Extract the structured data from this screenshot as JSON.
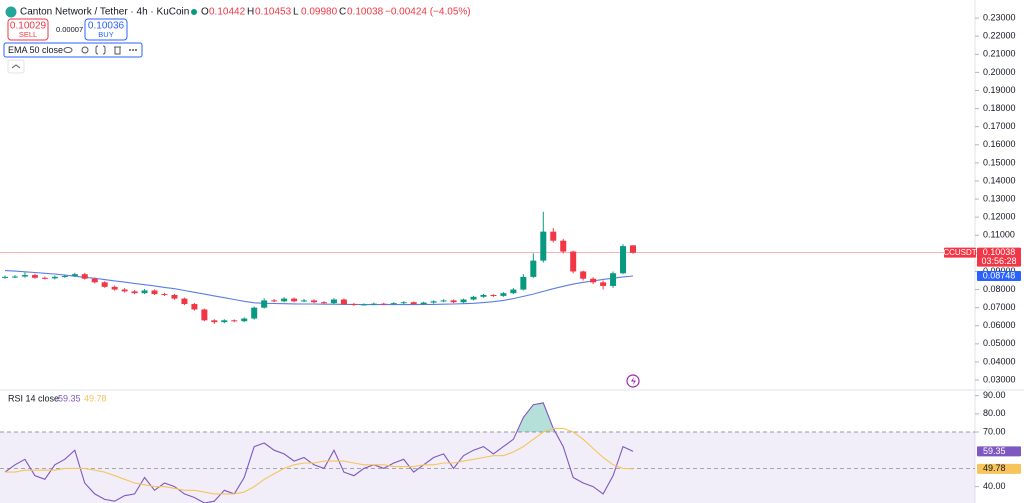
{
  "chart_data": [
    {
      "type": "candlestick",
      "title": "Canton Network / Tether · 4h · KuCoin",
      "ohlc_labels": [
        "O",
        "H",
        "L",
        "C"
      ],
      "ohlc_values": [
        "0.10442",
        "0.10453",
        "0.09980",
        "0.10038"
      ],
      "change": "−0.00424 (−4.05%)",
      "sell": {
        "price": "0.10029",
        "label": "SELL"
      },
      "spread": "0.00007",
      "buy": {
        "price": "0.10036",
        "label": "BUY"
      },
      "symbol": "CCUSDT",
      "last_price_label": "0.10038",
      "countdown": "03:56:28",
      "up_color": "#089981",
      "down_color": "#f23645",
      "open": [
        0.0865,
        0.087,
        0.0872,
        0.088,
        0.0865,
        0.0862,
        0.087,
        0.0875,
        0.0885,
        0.086,
        0.084,
        0.0815,
        0.08,
        0.079,
        0.078,
        0.0795,
        0.0775,
        0.077,
        0.075,
        0.072,
        0.069,
        0.063,
        0.062,
        0.063,
        0.0625,
        0.064,
        0.07,
        0.074,
        0.0735,
        0.075,
        0.0735,
        0.074,
        0.073,
        0.0725,
        0.0745,
        0.072,
        0.0715,
        0.0718,
        0.0722,
        0.072,
        0.0725,
        0.073,
        0.072,
        0.0728,
        0.0735,
        0.074,
        0.073,
        0.0745,
        0.076,
        0.077,
        0.0765,
        0.078,
        0.08,
        0.087,
        0.096,
        0.112,
        0.107,
        0.101,
        0.09,
        0.086,
        0.084,
        0.082,
        0.089,
        0.10442
      ],
      "high": [
        0.0878,
        0.088,
        0.0895,
        0.0888,
        0.0872,
        0.0878,
        0.0883,
        0.0893,
        0.0892,
        0.0866,
        0.0846,
        0.0822,
        0.0808,
        0.0797,
        0.0803,
        0.08,
        0.0782,
        0.0776,
        0.0756,
        0.0726,
        0.0695,
        0.0636,
        0.0636,
        0.0635,
        0.0646,
        0.0706,
        0.0752,
        0.0748,
        0.0758,
        0.0756,
        0.0748,
        0.0746,
        0.0736,
        0.0752,
        0.075,
        0.0726,
        0.0724,
        0.0728,
        0.0727,
        0.073,
        0.0736,
        0.0734,
        0.0733,
        0.074,
        0.0746,
        0.0745,
        0.075,
        0.0766,
        0.0776,
        0.0774,
        0.0786,
        0.0808,
        0.0885,
        0.1,
        0.123,
        0.114,
        0.108,
        0.1015,
        0.0905,
        0.0868,
        0.085,
        0.09,
        0.105,
        0.10453
      ],
      "low": [
        0.086,
        0.0864,
        0.0866,
        0.086,
        0.0856,
        0.0856,
        0.0865,
        0.087,
        0.0855,
        0.0834,
        0.081,
        0.0794,
        0.0784,
        0.0774,
        0.0775,
        0.077,
        0.0765,
        0.0744,
        0.0714,
        0.0684,
        0.0625,
        0.061,
        0.0614,
        0.062,
        0.062,
        0.0634,
        0.0695,
        0.073,
        0.073,
        0.073,
        0.073,
        0.0725,
        0.072,
        0.072,
        0.0715,
        0.071,
        0.0712,
        0.0714,
        0.0715,
        0.0715,
        0.072,
        0.0715,
        0.0715,
        0.0722,
        0.073,
        0.0725,
        0.0725,
        0.074,
        0.0755,
        0.076,
        0.076,
        0.0775,
        0.0795,
        0.0865,
        0.095,
        0.106,
        0.1,
        0.089,
        0.085,
        0.083,
        0.08,
        0.081,
        0.0885,
        0.0998
      ],
      "close": [
        0.087,
        0.0872,
        0.088,
        0.0865,
        0.0862,
        0.087,
        0.0875,
        0.0885,
        0.086,
        0.084,
        0.0815,
        0.08,
        0.079,
        0.078,
        0.0795,
        0.0775,
        0.077,
        0.075,
        0.072,
        0.069,
        0.063,
        0.062,
        0.063,
        0.0625,
        0.064,
        0.07,
        0.074,
        0.0735,
        0.075,
        0.0735,
        0.074,
        0.073,
        0.0725,
        0.0745,
        0.072,
        0.0715,
        0.0718,
        0.0722,
        0.072,
        0.0725,
        0.073,
        0.072,
        0.0728,
        0.0735,
        0.074,
        0.073,
        0.0745,
        0.076,
        0.077,
        0.0765,
        0.078,
        0.08,
        0.087,
        0.096,
        0.112,
        0.107,
        0.101,
        0.09,
        0.086,
        0.084,
        0.082,
        0.089,
        0.104,
        0.10038
      ],
      "series": [
        {
          "name": "EMA 50 close",
          "color": "#5b7ee5",
          "last_label": "0.08748",
          "values": [
            0.0905,
            0.0902,
            0.0898,
            0.0894,
            0.089,
            0.0886,
            0.088,
            0.0874,
            0.0868,
            0.0862,
            0.0855,
            0.0848,
            0.0841,
            0.0834,
            0.0827,
            0.082,
            0.0812,
            0.0805,
            0.0795,
            0.0785,
            0.0775,
            0.0765,
            0.0755,
            0.0745,
            0.0735,
            0.0727,
            0.0724,
            0.0723,
            0.0722,
            0.0721,
            0.072,
            0.072,
            0.0719,
            0.0719,
            0.0718,
            0.0718,
            0.0717,
            0.0717,
            0.0717,
            0.0717,
            0.0717,
            0.0717,
            0.0718,
            0.0718,
            0.0719,
            0.072,
            0.0722,
            0.0724,
            0.0728,
            0.0733,
            0.074,
            0.075,
            0.0762,
            0.0775,
            0.079,
            0.0805,
            0.0818,
            0.083,
            0.084,
            0.0848,
            0.0856,
            0.0863,
            0.087,
            0.08748
          ]
        }
      ],
      "ylim": [
        0.0245,
        0.24
      ],
      "yticks": [
        {
          "value": 0.23,
          "label": "0.23000"
        },
        {
          "value": 0.22,
          "label": "0.22000"
        },
        {
          "value": 0.21,
          "label": "0.21000"
        },
        {
          "value": 0.2,
          "label": "0.20000"
        },
        {
          "value": 0.19,
          "label": "0.19000"
        },
        {
          "value": 0.18,
          "label": "0.18000"
        },
        {
          "value": 0.17,
          "label": "0.17000"
        },
        {
          "value": 0.16,
          "label": "0.16000"
        },
        {
          "value": 0.15,
          "label": "0.15000"
        },
        {
          "value": 0.14,
          "label": "0.14000"
        },
        {
          "value": 0.13,
          "label": "0.13000"
        },
        {
          "value": 0.12,
          "label": "0.12000"
        },
        {
          "value": 0.11,
          "label": "0.11000"
        },
        {
          "value": 0.1,
          "label": "0.10000"
        },
        {
          "value": 0.09,
          "label": "0.09000"
        },
        {
          "value": 0.08,
          "label": "0.08000"
        },
        {
          "value": 0.07,
          "label": "0.07000"
        },
        {
          "value": 0.06,
          "label": "0.06000"
        },
        {
          "value": 0.05,
          "label": "0.05000"
        },
        {
          "value": 0.04,
          "label": "0.04000"
        },
        {
          "value": 0.03,
          "label": "0.03000"
        }
      ]
    },
    {
      "type": "line",
      "title": "RSI 14 close",
      "series": [
        {
          "color": "#7e57c2",
          "last_label": "59.35",
          "values": [
            48,
            52,
            55,
            46,
            44,
            52,
            55,
            60,
            42,
            36,
            33,
            32,
            35,
            36,
            45,
            38,
            42,
            40,
            36,
            34,
            31,
            32,
            38,
            36,
            45,
            62,
            64,
            60,
            58,
            54,
            56,
            52,
            50,
            60,
            48,
            46,
            50,
            52,
            50,
            53,
            55,
            48,
            52,
            56,
            58,
            50,
            57,
            60,
            62,
            58,
            62,
            66,
            78,
            85,
            86,
            72,
            62,
            45,
            42,
            40,
            36,
            46,
            62,
            59.35
          ]
        },
        {
          "color": "#f7c45c",
          "last_label": "49.78",
          "values": [
            48,
            48,
            49,
            49,
            49,
            49,
            50,
            50,
            50,
            49,
            48,
            46,
            44,
            42,
            41,
            40,
            40,
            39,
            38,
            38,
            37,
            36,
            36,
            36,
            37,
            40,
            44,
            47,
            50,
            52,
            53,
            53,
            54,
            54,
            54,
            53,
            52,
            52,
            52,
            51,
            51,
            51,
            52,
            52,
            53,
            53,
            54,
            55,
            56,
            57,
            57,
            59,
            62,
            66,
            70,
            72,
            72,
            70,
            66,
            61,
            56,
            52,
            50,
            49.78
          ]
        }
      ],
      "band": [
        30,
        70
      ],
      "hlines": [
        70,
        50
      ],
      "ylim": [
        31,
        92
      ],
      "yticks": [
        {
          "value": 90,
          "label": "90.00"
        },
        {
          "value": 80,
          "label": "80.00"
        },
        {
          "value": 70,
          "label": "70.00"
        },
        {
          "value": 40,
          "label": "40.00"
        }
      ]
    }
  ]
}
